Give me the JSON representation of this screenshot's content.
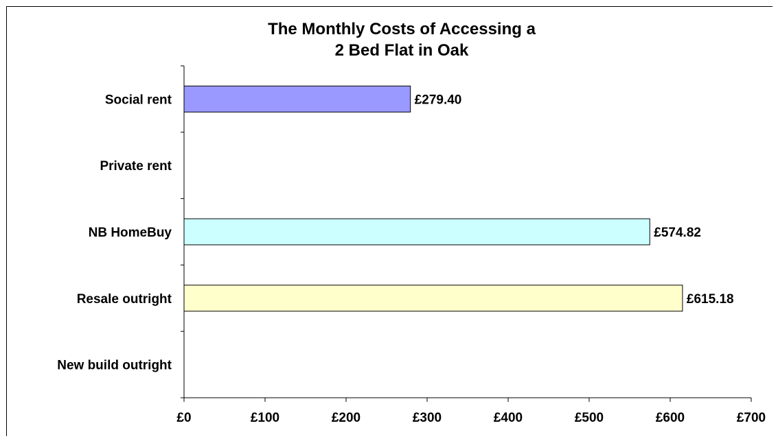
{
  "chart_data": {
    "type": "bar",
    "orientation": "horizontal",
    "title_lines": [
      "The Monthly Costs of Accessing a",
      "2 Bed Flat in Oak"
    ],
    "categories": [
      "Social rent",
      "Private rent",
      "NB HomeBuy",
      "Resale outright",
      "New build outright"
    ],
    "values": [
      279.4,
      null,
      574.82,
      615.18,
      null
    ],
    "value_labels": [
      "£279.40",
      "",
      "£574.82",
      "£615.18",
      ""
    ],
    "bar_colors": [
      "#9999ff",
      "#ccffff",
      "#ccffff",
      "#ffffcc",
      "#ffffff"
    ],
    "xlim": [
      0,
      700
    ],
    "xticks": [
      0,
      100,
      200,
      300,
      400,
      500,
      600,
      700
    ],
    "xtick_labels": [
      "£0",
      "£100",
      "£200",
      "£300",
      "£400",
      "£500",
      "£600",
      "£700"
    ],
    "grid": false,
    "legend": "none"
  }
}
